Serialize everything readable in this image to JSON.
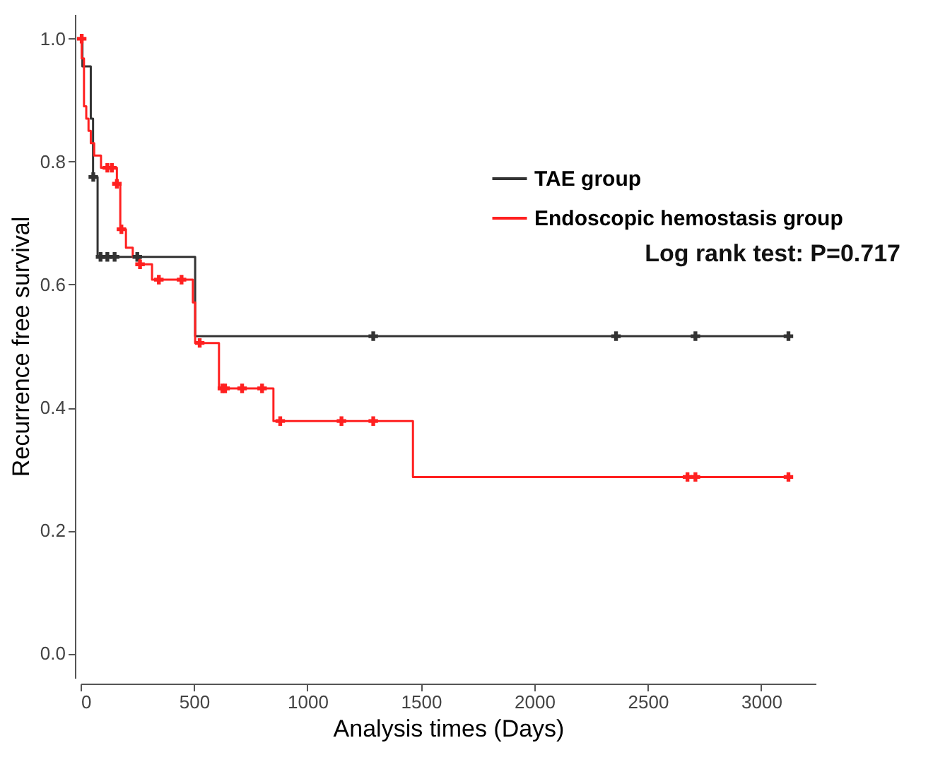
{
  "chart_data": {
    "type": "step",
    "xlabel": "Analysis times (Days)",
    "ylabel": "Recurrence free survival",
    "xlim": [
      0,
      3240
    ],
    "xticks": [
      0,
      500,
      1000,
      1500,
      2000,
      2500,
      3000
    ],
    "ylim": [
      -0.04,
      1.04
    ],
    "yticks": [
      {
        "value": 0,
        "label": "0.0"
      },
      0.2,
      0.4,
      0.6,
      0.8,
      {
        "value": 1,
        "label": "1.0"
      }
    ],
    "grid": false,
    "legend": "top right",
    "line_style": "solid",
    "annotations": [
      "Log rank test: P=0.717"
    ],
    "series": [
      {
        "name": "TAE group",
        "color": "#333333",
        "x": [
          0,
          8,
          45,
          55,
          75,
          505,
          3120
        ],
        "values": [
          1.0,
          0.955,
          0.87,
          0.775,
          0.645,
          0.516,
          0.516
        ]
      },
      {
        "name": "Endoscopic hemostasis group",
        "color": "#ff2020",
        "x": [
          0,
          5,
          15,
          25,
          35,
          45,
          60,
          90,
          160,
          175,
          200,
          230,
          260,
          315,
          495,
          505,
          610,
          850,
          1465,
          3120
        ],
        "values": [
          1.0,
          0.968,
          0.89,
          0.87,
          0.85,
          0.83,
          0.81,
          0.79,
          0.764,
          0.69,
          0.66,
          0.645,
          0.633,
          0.608,
          0.571,
          0.505,
          0.431,
          0.378,
          0.287,
          0.287
        ]
      },
      {
        "type": "scatter",
        "marker": "cross",
        "color": "#333333",
        "x": [
          56,
          88,
          118,
          150,
          250,
          1290,
          2360,
          2710,
          3120
        ],
        "values": [
          0.775,
          0.645,
          0.645,
          0.645,
          0.645,
          0.516,
          0.516,
          0.516,
          0.516
        ]
      },
      {
        "type": "scatter",
        "marker": "cross",
        "color": "#ff2020",
        "x": [
          5,
          118,
          138,
          160,
          180,
          262,
          345,
          445,
          525,
          625,
          637,
          712,
          800,
          880,
          1150,
          1290,
          2675,
          2710,
          3120
        ],
        "values": [
          1.0,
          0.79,
          0.79,
          0.764,
          0.69,
          0.633,
          0.608,
          0.608,
          0.505,
          0.431,
          0.431,
          0.431,
          0.431,
          0.378,
          0.378,
          0.378,
          0.287,
          0.287,
          0.287
        ]
      }
    ]
  }
}
